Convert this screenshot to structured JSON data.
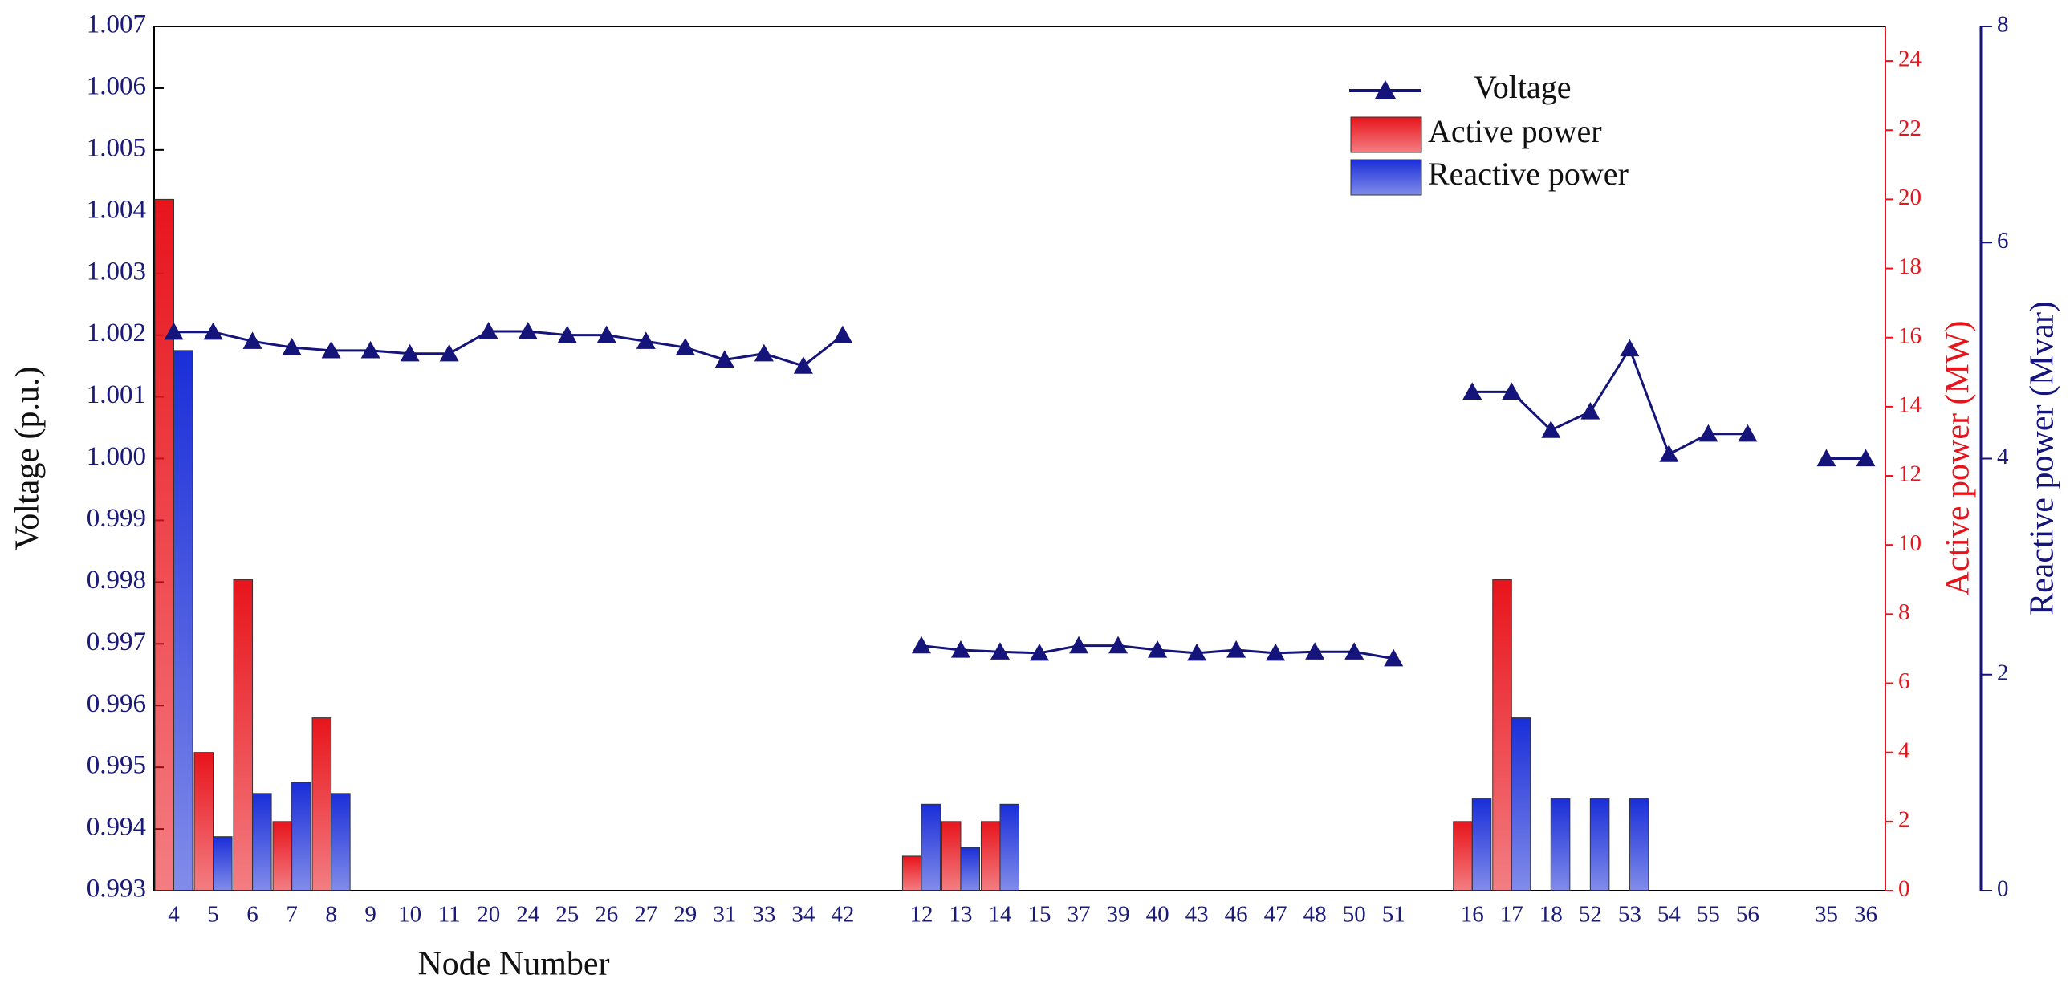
{
  "chart_data": {
    "type": "combo",
    "x_label": "Node Number",
    "y_label": "Voltage  (p.u.)",
    "y2_label": "Active power  (MW)",
    "y3_label": "Reactive power  (Mvar)",
    "categories": [
      "4",
      "5",
      "6",
      "7",
      "8",
      "9",
      "10",
      "11",
      "20",
      "24",
      "25",
      "26",
      "27",
      "29",
      "31",
      "33",
      "34",
      "42",
      null,
      "12",
      "13",
      "14",
      "15",
      "37",
      "39",
      "40",
      "43",
      "46",
      "47",
      "48",
      "50",
      "51",
      null,
      "16",
      "17",
      "18",
      "52",
      "53",
      "54",
      "55",
      "56",
      null,
      "35",
      "36"
    ],
    "ylim": [
      0.993,
      1.007
    ],
    "yticks": [
      {
        "value": 0.993,
        "label": "0.993"
      },
      {
        "value": 0.994,
        "label": "0.994"
      },
      {
        "value": 0.995,
        "label": "0.995"
      },
      {
        "value": 0.996,
        "label": "0.996"
      },
      {
        "value": 0.997,
        "label": "0.997"
      },
      {
        "value": 0.998,
        "label": "0.998"
      },
      {
        "value": 0.999,
        "label": "0.999"
      },
      {
        "value": 1,
        "label": "1.000"
      },
      {
        "value": 1.001,
        "label": "1.001"
      },
      {
        "value": 1.002,
        "label": "1.002"
      },
      {
        "value": 1.003,
        "label": "1.003"
      },
      {
        "value": 1.004,
        "label": "1.004"
      },
      {
        "value": 1.005,
        "label": "1.005"
      },
      {
        "value": 1.006,
        "label": "1.006"
      },
      {
        "value": 1.007,
        "label": "1.007"
      }
    ],
    "y2lim": [
      0,
      25
    ],
    "y2ticks": [
      0,
      2,
      4,
      6,
      8,
      10,
      12,
      14,
      16,
      18,
      20,
      22,
      24
    ],
    "y3lim": [
      0,
      8
    ],
    "y3ticks": [
      0,
      2,
      4,
      6,
      8
    ],
    "series": [
      {
        "name": "Voltage",
        "type": "line",
        "axis": "y",
        "color": "#14147a",
        "values": [
          1.00205,
          1.00205,
          1.0019,
          1.0018,
          1.00175,
          1.00175,
          1.0017,
          1.0017,
          1.00206,
          1.00206,
          1.002,
          1.002,
          1.0019,
          1.0018,
          1.0016,
          1.0017,
          1.0015,
          1.002,
          null,
          0.99697,
          0.9969,
          0.99687,
          0.99685,
          0.99697,
          0.99697,
          0.9969,
          0.99685,
          0.9969,
          0.99685,
          0.99687,
          0.99687,
          0.99676,
          null,
          1.00108,
          1.00108,
          1.00046,
          1.00076,
          1.00178,
          1.00007,
          1.0004,
          1.0004,
          null,
          1.0,
          1.0
        ]
      },
      {
        "name": "Active power",
        "type": "bar",
        "axis": "y2",
        "color": "#e8141c",
        "values": [
          20,
          4,
          9,
          2,
          5,
          0,
          0,
          0,
          0,
          0,
          0,
          0,
          0,
          0,
          0,
          0,
          0,
          0,
          null,
          1,
          2,
          2,
          0,
          0,
          0,
          0,
          0,
          0,
          0,
          0,
          0,
          0,
          null,
          2,
          9,
          0,
          0,
          0,
          0,
          0,
          0,
          null,
          0,
          0
        ]
      },
      {
        "name": "Reactive power",
        "type": "bar",
        "axis": "y3",
        "color": "#1a2ed8",
        "values": [
          5,
          0.5,
          0.9,
          1.0,
          0.9,
          0,
          0,
          0,
          0,
          0,
          0,
          0,
          0,
          0,
          0,
          0,
          0,
          0,
          null,
          0.8,
          0.4,
          0.8,
          0,
          0,
          0,
          0,
          0,
          0,
          0,
          0,
          0,
          0,
          null,
          0.85,
          1.6,
          0.85,
          0.85,
          0.85,
          0,
          0,
          0,
          null,
          0,
          0
        ]
      }
    ]
  }
}
